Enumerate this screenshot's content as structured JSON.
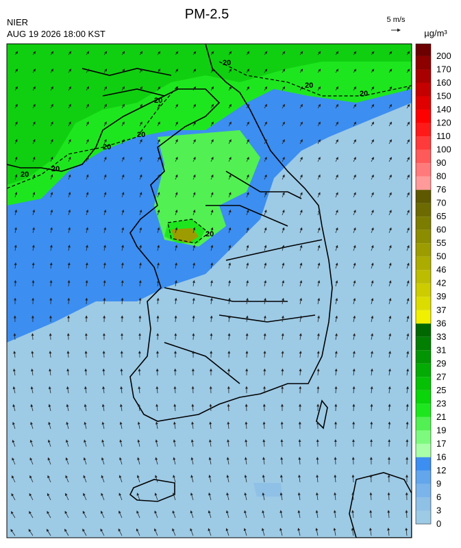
{
  "header": {
    "title": "PM-2.5",
    "agency": "NIER",
    "timestamp": "AUG 19 2026 18:00 KST",
    "wind_scale": "5 m/s",
    "unit": "µg/m³"
  },
  "contour_labels": [
    "20",
    "20",
    "20",
    "20",
    "20",
    "20",
    "20",
    "20",
    "20"
  ],
  "colorbar": [
    {
      "label": "0",
      "color": "#9dcae5"
    },
    {
      "label": "3",
      "color": "#8fc0e6"
    },
    {
      "label": "6",
      "color": "#7ab4ea"
    },
    {
      "label": "9",
      "color": "#63a6ec"
    },
    {
      "label": "12",
      "color": "#3c8ef0"
    },
    {
      "label": "16",
      "color": "#a8ffa8"
    },
    {
      "label": "17",
      "color": "#7dfa7d"
    },
    {
      "label": "19",
      "color": "#52f052"
    },
    {
      "label": "21",
      "color": "#1ee61e"
    },
    {
      "label": "23",
      "color": "#0ad40a"
    },
    {
      "label": "25",
      "color": "#06c006"
    },
    {
      "label": "27",
      "color": "#04ab04"
    },
    {
      "label": "29",
      "color": "#039403"
    },
    {
      "label": "31",
      "color": "#027e02"
    },
    {
      "label": "33",
      "color": "#016801"
    },
    {
      "label": "36",
      "color": "#f0f000"
    },
    {
      "label": "37",
      "color": "#dcdc00"
    },
    {
      "label": "39",
      "color": "#cccc00"
    },
    {
      "label": "42",
      "color": "#bcbc00"
    },
    {
      "label": "46",
      "color": "#acac00"
    },
    {
      "label": "50",
      "color": "#9c9c00"
    },
    {
      "label": "55",
      "color": "#8c8c00"
    },
    {
      "label": "60",
      "color": "#7c7c00"
    },
    {
      "label": "65",
      "color": "#6c6a00"
    },
    {
      "label": "70",
      "color": "#5e5800"
    },
    {
      "label": "76",
      "color": "#ff9a9a"
    },
    {
      "label": "80",
      "color": "#ff7a7a"
    },
    {
      "label": "90",
      "color": "#ff5a5a"
    },
    {
      "label": "100",
      "color": "#ff3a3a"
    },
    {
      "label": "110",
      "color": "#ff1a1a"
    },
    {
      "label": "120",
      "color": "#ff0000"
    },
    {
      "label": "140",
      "color": "#e00000"
    },
    {
      "label": "150",
      "color": "#c40000"
    },
    {
      "label": "160",
      "color": "#a80000"
    },
    {
      "label": "170",
      "color": "#8c0000"
    },
    {
      "label": "200",
      "color": "#6c0000"
    }
  ]
}
